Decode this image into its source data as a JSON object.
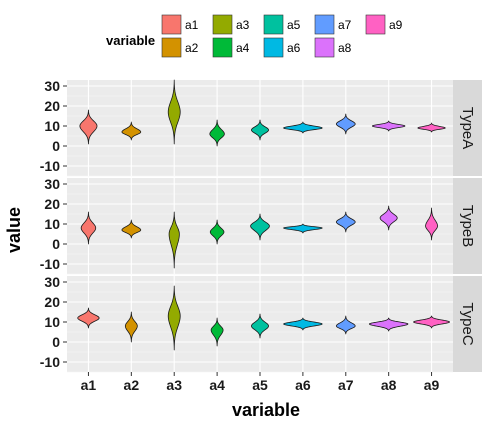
{
  "chart_data": {
    "type": "violin",
    "facet_direction": "vertical",
    "facets": [
      "TypeA",
      "TypeB",
      "TypeC"
    ],
    "categories": [
      "a1",
      "a2",
      "a3",
      "a4",
      "a5",
      "a6",
      "a7",
      "a8",
      "a9"
    ],
    "xlabel": "variable",
    "ylabel": "value",
    "ylim": [
      -15,
      33
    ],
    "yticks": [
      -10,
      0,
      10,
      20,
      30
    ],
    "grid": true,
    "legend": {
      "title": "variable",
      "position": "top",
      "entries": [
        "a1",
        "a2",
        "a3",
        "a4",
        "a5",
        "a6",
        "a7",
        "a8",
        "a9"
      ]
    },
    "colors": {
      "a1": "#F8766D",
      "a2": "#D39200",
      "a3": "#93AA00",
      "a4": "#00BA38",
      "a5": "#00C19F",
      "a6": "#00B9E3",
      "a7": "#619CFF",
      "a8": "#DB72FB",
      "a9": "#FF61C3"
    },
    "panel_background": "#EBEBEB",
    "strip_background": "#D9D9D9",
    "series": [
      {
        "facet": "TypeA",
        "violins": [
          {
            "category": "a1",
            "min": 1,
            "max": 18,
            "peak": 10,
            "halfwidth": 0.2
          },
          {
            "category": "a2",
            "min": 3,
            "max": 12,
            "peak": 7,
            "halfwidth": 0.22
          },
          {
            "category": "a3",
            "min": 1,
            "max": 33,
            "peak": 17,
            "halfwidth": 0.14
          },
          {
            "category": "a4",
            "min": 0,
            "max": 13,
            "peak": 6,
            "halfwidth": 0.17
          },
          {
            "category": "a5",
            "min": 3,
            "max": 13,
            "peak": 8,
            "halfwidth": 0.2
          },
          {
            "category": "a6",
            "min": 6.5,
            "max": 12,
            "peak": 9,
            "halfwidth": 0.45
          },
          {
            "category": "a7",
            "min": 6,
            "max": 16,
            "peak": 11,
            "halfwidth": 0.22
          },
          {
            "category": "a8",
            "min": 7.5,
            "max": 12.5,
            "peak": 10,
            "halfwidth": 0.38
          },
          {
            "category": "a9",
            "min": 7,
            "max": 11.5,
            "peak": 9,
            "halfwidth": 0.32
          }
        ]
      },
      {
        "facet": "TypeB",
        "violins": [
          {
            "category": "a1",
            "min": 0,
            "max": 16,
            "peak": 8,
            "halfwidth": 0.17
          },
          {
            "category": "a2",
            "min": 3,
            "max": 12,
            "peak": 7,
            "halfwidth": 0.22
          },
          {
            "category": "a3",
            "min": -12,
            "max": 16,
            "peak": 5,
            "halfwidth": 0.12
          },
          {
            "category": "a4",
            "min": 0,
            "max": 12,
            "peak": 6,
            "halfwidth": 0.16
          },
          {
            "category": "a5",
            "min": 2,
            "max": 15,
            "peak": 9,
            "halfwidth": 0.22
          },
          {
            "category": "a6",
            "min": 5.5,
            "max": 10,
            "peak": 8,
            "halfwidth": 0.45
          },
          {
            "category": "a7",
            "min": 6,
            "max": 16,
            "peak": 11,
            "halfwidth": 0.22
          },
          {
            "category": "a8",
            "min": 7,
            "max": 19,
            "peak": 13,
            "halfwidth": 0.2
          },
          {
            "category": "a9",
            "min": 2,
            "max": 18,
            "peak": 9,
            "halfwidth": 0.14
          }
        ]
      },
      {
        "facet": "TypeC",
        "violins": [
          {
            "category": "a1",
            "min": 7,
            "max": 17,
            "peak": 12,
            "halfwidth": 0.25
          },
          {
            "category": "a2",
            "min": 0,
            "max": 15,
            "peak": 8,
            "halfwidth": 0.14
          },
          {
            "category": "a3",
            "min": -4,
            "max": 28,
            "peak": 13,
            "halfwidth": 0.14
          },
          {
            "category": "a4",
            "min": -2,
            "max": 12,
            "peak": 6,
            "halfwidth": 0.14
          },
          {
            "category": "a5",
            "min": 2,
            "max": 14,
            "peak": 8,
            "halfwidth": 0.2
          },
          {
            "category": "a6",
            "min": 6,
            "max": 12,
            "peak": 9,
            "halfwidth": 0.45
          },
          {
            "category": "a7",
            "min": 4,
            "max": 13,
            "peak": 8,
            "halfwidth": 0.22
          },
          {
            "category": "a8",
            "min": 5.5,
            "max": 12,
            "peak": 9,
            "halfwidth": 0.45
          },
          {
            "category": "a9",
            "min": 7,
            "max": 13,
            "peak": 10,
            "halfwidth": 0.42
          }
        ]
      }
    ]
  }
}
